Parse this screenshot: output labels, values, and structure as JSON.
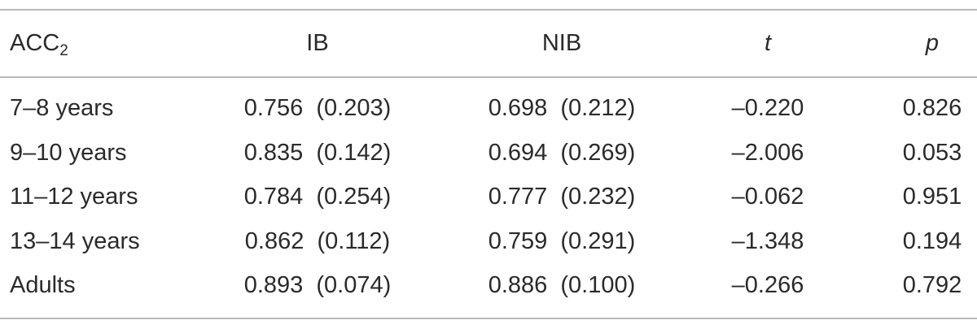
{
  "table": {
    "header": [
      {
        "text": "ACC",
        "subscript": "2"
      },
      "IB",
      "NIB",
      "t",
      "p"
    ],
    "rows": [
      [
        "7–8 years",
        "0.756  (0.203)",
        "0.698  (0.212)",
        "–0.220",
        "0.826"
      ],
      [
        "9–10 years",
        "0.835  (0.142)",
        "0.694  (0.269)",
        "–2.006",
        "0.053"
      ],
      [
        "11–12 years",
        "0.784  (0.254)",
        "0.777  (0.232)",
        "–0.062",
        "0.951"
      ],
      [
        "13–14 years",
        "0.862  (0.112)",
        "0.759  (0.291)",
        "–1.348",
        "0.194"
      ],
      [
        "Adults",
        "0.893  (0.074)",
        "0.886  (0.100)",
        "–0.266",
        "0.792"
      ]
    ]
  }
}
